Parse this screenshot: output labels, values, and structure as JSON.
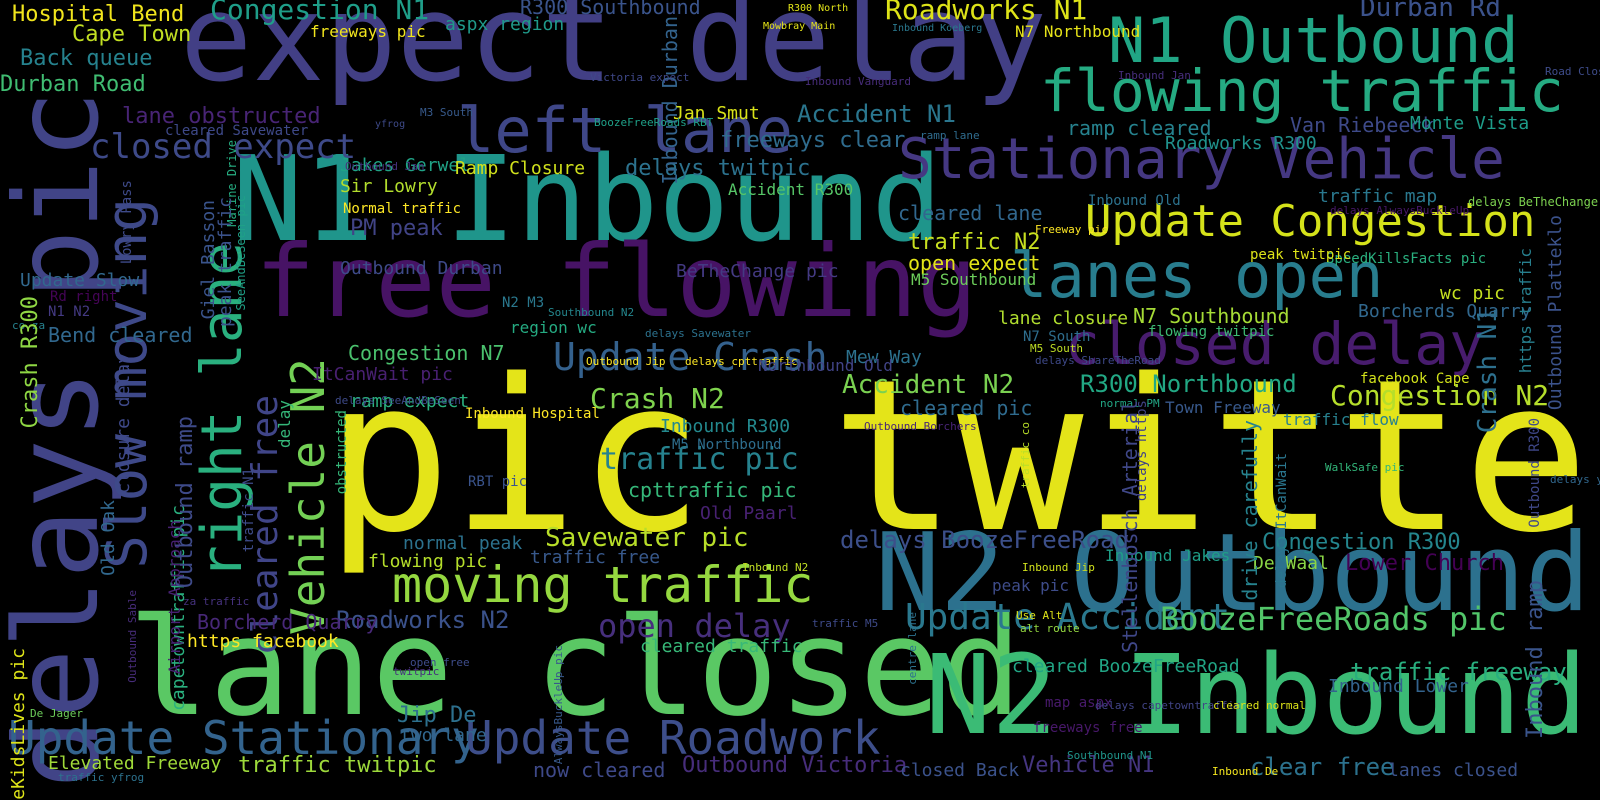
{
  "words": [
    {
      "text": "pic twitter",
      "color": "#e4e419"
    },
    {
      "text": "expect delay",
      "color": "#423f85"
    },
    {
      "text": "N1 Inbound",
      "color": "#1f958b"
    },
    {
      "text": "free flowing",
      "color": "#471365"
    },
    {
      "text": "lane closed",
      "color": "#5ac864"
    },
    {
      "text": "N2 Outbound",
      "color": "#2c718e"
    },
    {
      "text": "N2 Inbound",
      "color": "#3bbb75"
    },
    {
      "text": "delays pic",
      "color": "#414487"
    },
    {
      "text": "N1 Outbound",
      "color": "#21a685"
    },
    {
      "text": "flowing traffic",
      "color": "#25ab82"
    },
    {
      "text": "Stationary Vehicle",
      "color": "#453882"
    },
    {
      "text": "Update Congestion",
      "color": "#d5e21a"
    },
    {
      "text": "lanes open",
      "color": "#287d8e"
    },
    {
      "text": "closed delay",
      "color": "#481c6e"
    },
    {
      "text": "left lane",
      "color": "#3f4788"
    },
    {
      "text": "Slow moving",
      "color": "#3e4989"
    },
    {
      "text": "right lane",
      "color": "#2ab07f"
    },
    {
      "text": "moving traffic",
      "color": "#95d840"
    },
    {
      "text": "Update Stationary",
      "color": "#33638d"
    },
    {
      "text": "Update Roadwork",
      "color": "#3d4e8a"
    },
    {
      "text": "Vehicle N2",
      "color": "#73d055"
    },
    {
      "text": "Update Crash",
      "color": "#34618d"
    },
    {
      "text": "Update Accident",
      "color": "#2a788e"
    },
    {
      "text": "BoozeFreeRoads pic",
      "color": "#52c569"
    },
    {
      "text": "closed expect",
      "color": "#3e4a89"
    },
    {
      "text": "cleared free",
      "color": "#404588"
    },
    {
      "text": "Roadworks N1",
      "color": "#dde318"
    },
    {
      "text": "Congestion N1",
      "color": "#1f9e89"
    },
    {
      "text": "traffic pic",
      "color": "#26828e"
    },
    {
      "text": "open delay",
      "color": "#472f7d"
    },
    {
      "text": "Savewater pic",
      "color": "#b8de29"
    },
    {
      "text": "Accident N2",
      "color": "#7ad151"
    },
    {
      "text": "Crash N2",
      "color": "#7fd34e"
    },
    {
      "text": "Congestion N2",
      "color": "#b5de2b"
    },
    {
      "text": "R300 Northbound",
      "color": "#22a884"
    },
    {
      "text": "Roadworks N2",
      "color": "#3b528b"
    },
    {
      "text": "traffic freeway",
      "color": "#29af7f"
    },
    {
      "text": "Accident N1",
      "color": "#2a768e"
    },
    {
      "text": "Durban Rd",
      "color": "#3b528b"
    },
    {
      "text": "Crash N1",
      "color": "#2d708e"
    },
    {
      "text": "freeways clear",
      "color": "#2f6c8e"
    },
    {
      "text": "delays twitpic",
      "color": "#2c728e"
    },
    {
      "text": "Update Slow",
      "color": "#31688e"
    },
    {
      "text": "Hospital Bend",
      "color": "#f1e51d"
    },
    {
      "text": "Cape Town",
      "color": "#c2df23"
    },
    {
      "text": "Back queue",
      "color": "#26828e"
    },
    {
      "text": "Durban Road",
      "color": "#40bd72"
    },
    {
      "text": "lane obstructed",
      "color": "#482475"
    },
    {
      "text": "Jakes Gerwel",
      "color": "#20a386"
    },
    {
      "text": "Sir Lowry",
      "color": "#b2dd2d"
    },
    {
      "text": "Normal traffic",
      "color": "#fde725"
    },
    {
      "text": "PM peak",
      "color": "#414487"
    },
    {
      "text": "Outbound Durban",
      "color": "#3e4a89"
    },
    {
      "text": "Congestion N7",
      "color": "#4ac16d"
    },
    {
      "text": "ItCanWait pic",
      "color": "#482071"
    },
    {
      "text": "ramp expect",
      "color": "#2ab07f"
    },
    {
      "text": "Inbound Hospital",
      "color": "#fde725"
    },
    {
      "text": "Inbound R300",
      "color": "#23898e"
    },
    {
      "text": "M5 Northbound",
      "color": "#2e6e8e"
    },
    {
      "text": "cpttraffic pic",
      "color": "#35b779"
    },
    {
      "text": "Old Paarl",
      "color": "#482173"
    },
    {
      "text": "normal peak",
      "color": "#2c728e"
    },
    {
      "text": "flowing pic",
      "color": "#b5de2b"
    },
    {
      "text": "traffic free",
      "color": "#38598c"
    },
    {
      "text": "delays BoozeFreeRoad",
      "color": "#3c4f8a"
    },
    {
      "text": "Inbound Jakes",
      "color": "#1f9f88"
    },
    {
      "text": "De Waal",
      "color": "#8bd646"
    },
    {
      "text": "Lower Church",
      "color": "#440154"
    },
    {
      "text": "Congestion R300",
      "color": "#24868e"
    },
    {
      "text": "Inbound ramp",
      "color": "#3a548c"
    },
    {
      "text": "Inbound Lower",
      "color": "#33638d"
    },
    {
      "text": "cleared BoozeFreeRoad",
      "color": "#21a585"
    },
    {
      "text": "cleared traffic",
      "color": "#37b878"
    },
    {
      "text": "Jip De",
      "color": "#2d708e"
    },
    {
      "text": "two lane",
      "color": "#31678e"
    },
    {
      "text": "freeways free",
      "color": "#48186a"
    },
    {
      "text": "map aspx",
      "color": "#481a6c"
    },
    {
      "text": "Elevated Freeway",
      "color": "#a0da39"
    },
    {
      "text": "traffic twitpic",
      "color": "#9dd93b"
    },
    {
      "text": "now cleared",
      "color": "#3e4989"
    },
    {
      "text": "Outbound Victoria",
      "color": "#472d7b"
    },
    {
      "text": "closed Back",
      "color": "#3b528b"
    },
    {
      "text": "Vehicle N1",
      "color": "#453581"
    },
    {
      "text": "clear free",
      "color": "#2c728e"
    },
    {
      "text": "lanes closed",
      "color": "#3b528b"
    },
    {
      "text": "ramp cleared",
      "color": "#26828e"
    },
    {
      "text": "Van Riebeeck",
      "color": "#3e4a89"
    },
    {
      "text": "Monte Vista",
      "color": "#1e9c89"
    },
    {
      "text": "Roadworks R300",
      "color": "#20928c"
    },
    {
      "text": "traffic map",
      "color": "#2a788e"
    },
    {
      "text": "cleared lane",
      "color": "#31678e"
    },
    {
      "text": "traffic N2",
      "color": "#c8e020"
    },
    {
      "text": "open expect",
      "color": "#e2e418"
    },
    {
      "text": "M5 Southbound",
      "color": "#6ccd5a"
    },
    {
      "text": "BeTheChange pic",
      "color": "#443a83"
    },
    {
      "text": "N2 M3",
      "color": "#2a788e"
    },
    {
      "text": "region wc",
      "color": "#25ab82"
    },
    {
      "text": "Mew Way",
      "color": "#2c728e"
    },
    {
      "text": "cleared pic",
      "color": "#2f6b8e"
    },
    {
      "text": "lane closure",
      "color": "#b0dd2f"
    },
    {
      "text": "N7 Southbound",
      "color": "#a5db36"
    },
    {
      "text": "N7 South",
      "color": "#2e6e8e"
    },
    {
      "text": "M5 South",
      "color": "#c0df25"
    },
    {
      "text": "flowing twitpic",
      "color": "#3dbc74"
    },
    {
      "text": "wc pic",
      "color": "#c5e021"
    },
    {
      "text": "Borcherds Quarry",
      "color": "#31688e"
    },
    {
      "text": "facebook Cape",
      "color": "#d2e21b"
    },
    {
      "text": "Town Freeway",
      "color": "#38598c"
    },
    {
      "text": "traffic flow",
      "color": "#27808e"
    },
    {
      "text": "peak pic",
      "color": "#3e4c8a"
    },
    {
      "text": "SpeedKillsFacts pic",
      "color": "#2ab07f"
    },
    {
      "text": "Outbound Platteklo",
      "color": "#3b528b"
    },
    {
      "text": "https traffic",
      "color": "#277f8e"
    },
    {
      "text": "aspx region",
      "color": "#1f9a8a"
    },
    {
      "text": "R300 Southbound",
      "color": "#3a548c"
    },
    {
      "text": "Inbound Durban",
      "color": "#33638d"
    },
    {
      "text": "Jan Smut",
      "color": "#d8e219"
    },
    {
      "text": "freeways pic",
      "color": "#f1e51d"
    },
    {
      "text": "N7 Northbound",
      "color": "#e7e419"
    },
    {
      "text": "R300 North",
      "color": "#e2e418"
    },
    {
      "text": "Mowbray Main",
      "color": "#e5e419"
    },
    {
      "text": "Inbound Koeberg",
      "color": "#2a788e"
    },
    {
      "text": "Victoria expect",
      "color": "#3f4889"
    },
    {
      "text": "Inbound Vanguard",
      "color": "#472c7a"
    },
    {
      "text": "Inbound Jan",
      "color": "#472e7c"
    },
    {
      "text": "Road Closure",
      "color": "#3e4c8a"
    },
    {
      "text": "M3 South",
      "color": "#375a8c"
    },
    {
      "text": "BoozeFreeRoads RBT",
      "color": "#1fa088"
    },
    {
      "text": "yfrog",
      "color": "#3e4a89"
    },
    {
      "text": "ramp lane",
      "color": "#2f6c8e"
    },
    {
      "text": "Ramp Closure",
      "color": "#d0e11c"
    },
    {
      "text": "Accident R300",
      "color": "#56c667"
    },
    {
      "text": "Inbound Old",
      "color": "#2c728e"
    },
    {
      "text": "Freeway pic",
      "color": "#fde725"
    },
    {
      "text": "cleared Savewater",
      "color": "#3e4989"
    },
    {
      "text": "Marine Drive",
      "color": "#26ad81"
    },
    {
      "text": "Outbound Jan",
      "color": "#46327e"
    },
    {
      "text": "delays AlwaysBuckleUp",
      "color": "#481769"
    },
    {
      "text": "delays BeTheChange",
      "color": "#7cd250"
    },
    {
      "text": "peak twitpic",
      "color": "#dde318"
    },
    {
      "text": "delays ShareTheRoad",
      "color": "#3e4989"
    },
    {
      "text": "Southbound N2",
      "color": "#24878e"
    },
    {
      "text": "delays Savewater",
      "color": "#2c728e"
    },
    {
      "text": "Rd right",
      "color": "#450457"
    },
    {
      "text": "Bend cleared",
      "color": "#31688e"
    },
    {
      "text": "N1 N2",
      "color": "#443a83"
    },
    {
      "text": "co za",
      "color": "#26828e"
    },
    {
      "text": "Crash R300",
      "color": "#8fd744"
    },
    {
      "text": "Giel Basson",
      "color": "#3a548c"
    },
    {
      "text": "peak traffic",
      "color": "#3b528b"
    },
    {
      "text": "SeeAndBeSeen pic",
      "color": "#1fa187"
    },
    {
      "text": "Lowry Pass",
      "color": "#3e4a89"
    },
    {
      "text": "delays SeeAndBeSeen",
      "color": "#3e4a89"
    },
    {
      "text": "Outbound Jip",
      "color": "#fde725"
    },
    {
      "text": "delays cpttraffic",
      "color": "#fde725"
    },
    {
      "text": "Northbound Old",
      "color": "#414487"
    },
    {
      "text": "Outbound Borchers",
      "color": "#482576"
    },
    {
      "text": "normal PM",
      "color": "#22a785"
    },
    {
      "text": "Stellenbosch Arterial",
      "color": "#3f4788"
    },
    {
      "text": "delays https",
      "color": "#414487"
    },
    {
      "text": "traffic co",
      "color": "#b8de29"
    },
    {
      "text": "delays ItCanWait",
      "color": "#2a768e"
    },
    {
      "text": "drive carefully",
      "color": "#26828e"
    },
    {
      "text": "Outbound R300",
      "color": "#3f4889"
    },
    {
      "text": "WalkSafe pic",
      "color": "#32b67a"
    },
    {
      "text": "delays yfrog",
      "color": "#31688e"
    },
    {
      "text": "Use Alt",
      "color": "#dde318"
    },
    {
      "text": "alt route",
      "color": "#95d840"
    },
    {
      "text": "Inbound Jip",
      "color": "#d0e11c"
    },
    {
      "text": "Inbound N2",
      "color": "#c2df23"
    },
    {
      "text": "traffic M5",
      "color": "#3e4a89"
    },
    {
      "text": "delays capetowntraffic",
      "color": "#414487"
    },
    {
      "text": "cleared normal",
      "color": "#dde318"
    },
    {
      "text": "Southbound N1",
      "color": "#1f958b"
    },
    {
      "text": "centre lane",
      "color": "#2c728e"
    },
    {
      "text": "Inbound De",
      "color": "#f4e61e"
    },
    {
      "text": "AlwaysBuckleUp pic",
      "color": "#38598c"
    },
    {
      "text": "RBT pic",
      "color": "#3a548c"
    },
    {
      "text": "open free",
      "color": "#3e4c8a"
    },
    {
      "text": "twitpic",
      "color": "#472f7d"
    },
    {
      "text": "https facebook",
      "color": "#fde725"
    },
    {
      "text": "Borcherd Quarry",
      "color": "#482878"
    },
    {
      "text": "za traffic",
      "color": "#46327e"
    },
    {
      "text": "SaveKidsLives pic",
      "color": "#dde318"
    },
    {
      "text": "De Jager",
      "color": "#6ccd5a"
    },
    {
      "text": "traffic yfrog",
      "color": "#2c728e"
    },
    {
      "text": "Old Oak",
      "color": "#31688e"
    },
    {
      "text": "closure delay",
      "color": "#3e4989"
    },
    {
      "text": "Outbound Sable",
      "color": "#472c7a"
    },
    {
      "text": "capetowntraffic pic",
      "color": "#2ab07f"
    },
    {
      "text": "Airport Approach",
      "color": "#482173"
    },
    {
      "text": "Outbound ramp",
      "color": "#3e4a89"
    },
    {
      "text": "obstructed",
      "color": "#35b779"
    },
    {
      "text": "delay",
      "color": "#35b779"
    },
    {
      "text": "traffic N1",
      "color": "#3e4c8a"
    },
    {
      "text": "SafeRoadsForAll WalkSafe",
      "color": "#3e4a89"
    },
    {
      "text": "Inbound Elevated",
      "color": "#2ab07f"
    },
    {
      "text": "Northbound Van",
      "color": "#3e4c8a"
    },
    {
      "text": "delays SaveKidsLive",
      "color": "#472f7d"
    },
    {
      "text": "delays SpeedKillsFact",
      "color": "#fde725"
    }
  ]
}
